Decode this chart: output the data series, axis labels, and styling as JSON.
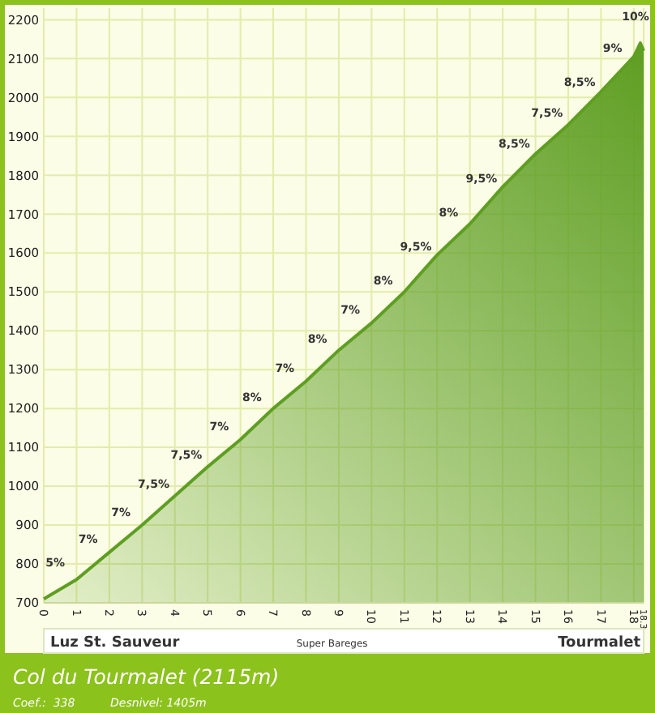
{
  "chart_data": {
    "type": "area",
    "title": "Col du Tourmalet (2115m)",
    "x": [
      0,
      1,
      2,
      3,
      4,
      5,
      6,
      7,
      8,
      9,
      10,
      11,
      12,
      13,
      14,
      15,
      16,
      17,
      18,
      18.2,
      18.3
    ],
    "series": [
      {
        "color": "#5e9e22",
        "values": [
          710,
          760,
          830,
          900,
          975,
          1050,
          1120,
          1200,
          1270,
          1350,
          1420,
          1500,
          1595,
          1675,
          1770,
          1855,
          1930,
          2015,
          2105,
          2140,
          2120
        ]
      }
    ],
    "xlim": [
      0,
      18.3
    ],
    "ylim": [
      700,
      2230
    ],
    "xticks": [
      0,
      1,
      2,
      3,
      4,
      5,
      6,
      7,
      8,
      9,
      10,
      11,
      12,
      13,
      14,
      15,
      16,
      17,
      18,
      18.3
    ],
    "yticks": [
      700,
      800,
      900,
      1000,
      1100,
      1200,
      1300,
      1400,
      1500,
      1600,
      1700,
      1800,
      1900,
      2000,
      2100,
      2200
    ],
    "grid": true,
    "annotations": [
      {
        "text": "5%",
        "x": 0.5,
        "y": 735
      },
      {
        "text": "7%",
        "x": 1.5,
        "y": 795
      },
      {
        "text": "7%",
        "x": 2.5,
        "y": 865
      },
      {
        "text": "7,5%",
        "x": 3.5,
        "y": 937.5
      },
      {
        "text": "7,5%",
        "x": 4.5,
        "y": 1012.5
      },
      {
        "text": "7%",
        "x": 5.5,
        "y": 1085
      },
      {
        "text": "8%",
        "x": 6.5,
        "y": 1160
      },
      {
        "text": "7%",
        "x": 7.5,
        "y": 1235
      },
      {
        "text": "8%",
        "x": 8.5,
        "y": 1310
      },
      {
        "text": "7%",
        "x": 9.5,
        "y": 1385
      },
      {
        "text": "8%",
        "x": 10.5,
        "y": 1460
      },
      {
        "text": "9,5%",
        "x": 11.5,
        "y": 1547.5
      },
      {
        "text": "8%",
        "x": 12.5,
        "y": 1635
      },
      {
        "text": "9,5%",
        "x": 13.5,
        "y": 1722.5
      },
      {
        "text": "8,5%",
        "x": 14.5,
        "y": 1812.5
      },
      {
        "text": "7,5%",
        "x": 15.5,
        "y": 1892.5
      },
      {
        "text": "8,5%",
        "x": 16.5,
        "y": 1972.5
      },
      {
        "text": "9%",
        "x": 17.5,
        "y": 2060
      },
      {
        "text": "10%",
        "x": 18.2,
        "y": 2140
      },
      "Luz St. Sauveur",
      "Super Bareges",
      "Tourmalet",
      "Coef.:  338",
      "Desnivel: 1405m"
    ]
  }
}
